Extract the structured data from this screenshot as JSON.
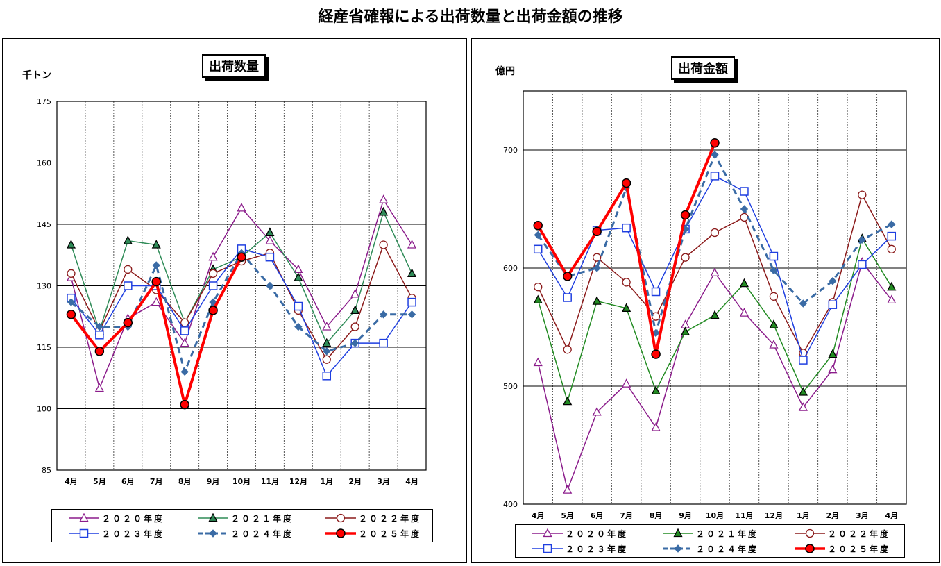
{
  "page_title": "経産省確報による出荷数量と出荷金額の推移",
  "chart_data": [
    {
      "type": "line",
      "title": "出荷数量",
      "ylabel": "千トン",
      "ylim": [
        85,
        175
      ],
      "yticks": [
        "85",
        "100",
        "115",
        "130",
        "145",
        "160",
        "175"
      ],
      "categories": [
        "4月",
        "5月",
        "6月",
        "7月",
        "8月",
        "9月",
        "10月",
        "11月",
        "12月",
        "1月",
        "2月",
        "3月",
        "4月"
      ],
      "series": [
        {
          "name": "２０２０年度",
          "color": "#8B1C8B",
          "marker": "triangle-open",
          "width": 1.5,
          "dash": "",
          "values": [
            132,
            105,
            122,
            126,
            116,
            137,
            149,
            141,
            134,
            120,
            128,
            151,
            140
          ]
        },
        {
          "name": "２０２１年度",
          "color": "#2E8B57",
          "marker": "triangle-filled",
          "width": 1.5,
          "dash": "",
          "values": [
            140,
            119,
            141,
            140,
            121,
            134,
            137,
            143,
            132,
            116,
            124,
            148,
            133
          ]
        },
        {
          "name": "２０２２年度",
          "color": "#8B1A1A",
          "marker": "circle-open",
          "width": 1.5,
          "dash": "",
          "values": [
            133,
            119,
            134,
            129,
            121,
            133,
            136,
            138,
            124,
            112,
            120,
            140,
            127
          ]
        },
        {
          "name": "２０２３年度",
          "color": "#1F3FE0",
          "marker": "square-open",
          "width": 1.5,
          "dash": "",
          "values": [
            127,
            118,
            130,
            130,
            119,
            130,
            139,
            137,
            125,
            108,
            116,
            116,
            126
          ]
        },
        {
          "name": "２０２４年度",
          "color": "#3A6BA5",
          "marker": "diamond-filled",
          "width": 3,
          "dash": "9,6",
          "values": [
            126,
            120,
            120,
            135,
            109,
            126,
            138,
            130,
            120,
            114,
            116,
            123,
            123
          ]
        },
        {
          "name": "２０２５年度",
          "color": "#FF0000",
          "marker": "circle-filled",
          "width": 4,
          "dash": "",
          "values": [
            123,
            114,
            121,
            131,
            101,
            124,
            137,
            null,
            null,
            null,
            null,
            null,
            null
          ]
        }
      ],
      "grid": true,
      "legend": "bottom"
    },
    {
      "type": "line",
      "title": "出荷金額",
      "ylabel": "億円",
      "ylim": [
        400,
        750
      ],
      "yticks": [
        "400",
        "500",
        "600",
        "700"
      ],
      "categories": [
        "4月",
        "5月",
        "6月",
        "7月",
        "8月",
        "9月",
        "10月",
        "11月",
        "12月",
        "1月",
        "2月",
        "3月",
        "4月"
      ],
      "series": [
        {
          "name": "２０２０年度",
          "color": "#8B1C8B",
          "marker": "triangle-open",
          "width": 1.5,
          "dash": "",
          "values": [
            520,
            412,
            478,
            502,
            465,
            552,
            596,
            562,
            535,
            482,
            514,
            605,
            573
          ]
        },
        {
          "name": "２０２１年度",
          "color": "#228B22",
          "marker": "triangle-filled",
          "width": 1.5,
          "dash": "",
          "values": [
            573,
            487,
            572,
            566,
            496,
            546,
            560,
            587,
            552,
            495,
            527,
            625,
            584
          ]
        },
        {
          "name": "２０２２年度",
          "color": "#8B1A1A",
          "marker": "circle-open",
          "width": 1.5,
          "dash": "",
          "values": [
            584,
            531,
            609,
            588,
            559,
            609,
            630,
            643,
            576,
            528,
            571,
            662,
            616
          ]
        },
        {
          "name": "２０２３年度",
          "color": "#1F3FE0",
          "marker": "square-open",
          "width": 1.5,
          "dash": "",
          "values": [
            616,
            575,
            632,
            634,
            580,
            633,
            678,
            665,
            610,
            522,
            569,
            603,
            627
          ]
        },
        {
          "name": "２０２４年度",
          "color": "#3A6BA5",
          "marker": "diamond-filled",
          "width": 3,
          "dash": "9,6",
          "values": [
            628,
            593,
            600,
            668,
            545,
            633,
            696,
            650,
            598,
            570,
            589,
            624,
            637
          ]
        },
        {
          "name": "２０２５年度",
          "color": "#FF0000",
          "marker": "circle-filled",
          "width": 4,
          "dash": "",
          "values": [
            636,
            593,
            631,
            672,
            527,
            645,
            706,
            null,
            null,
            null,
            null,
            null,
            null
          ]
        }
      ],
      "grid": true,
      "legend": "bottom"
    }
  ]
}
